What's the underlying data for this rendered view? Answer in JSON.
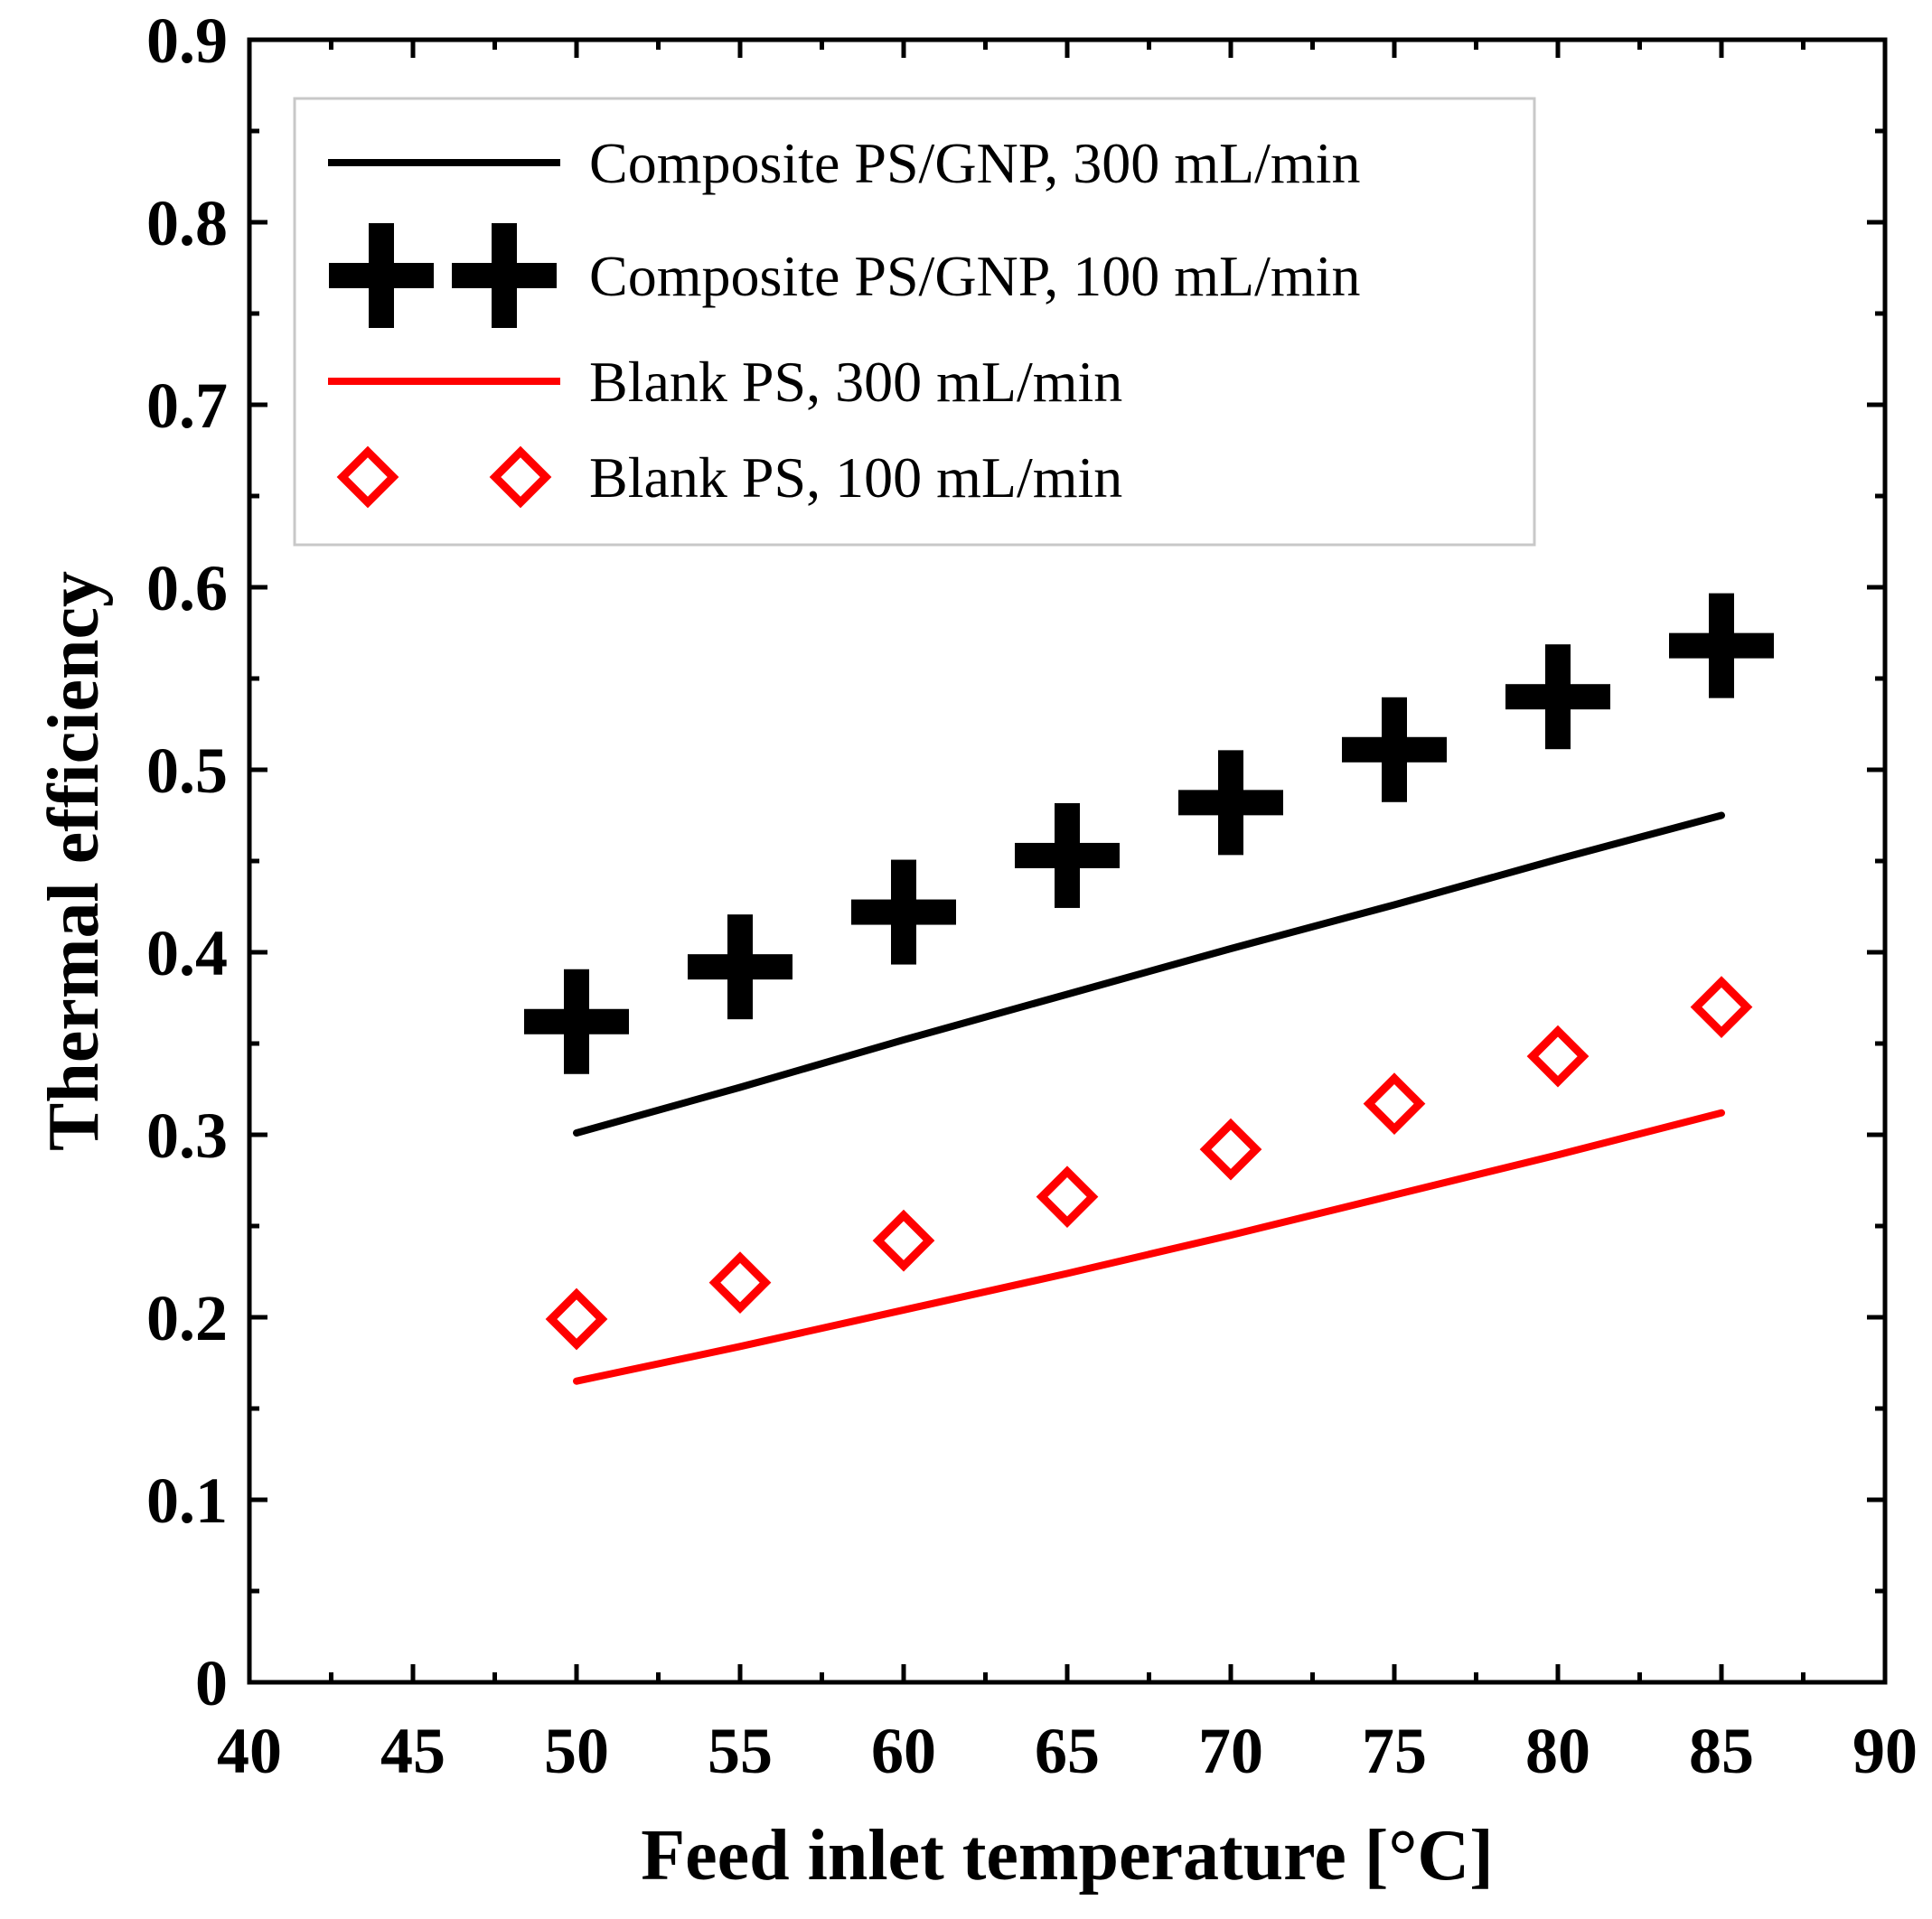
{
  "chart_data": {
    "type": "line",
    "title": "",
    "xlabel": "Feed inlet temperature [°C]",
    "ylabel": "Thermal efficiency",
    "xlim": [
      40,
      90
    ],
    "ylim": [
      0,
      0.9
    ],
    "x_ticks": [
      "40",
      "45",
      "50",
      "55",
      "60",
      "65",
      "70",
      "75",
      "80",
      "85",
      "90"
    ],
    "y_ticks": [
      "0",
      "0.1",
      "0.2",
      "0.3",
      "0.4",
      "0.5",
      "0.6",
      "0.7",
      "0.8",
      "0.9"
    ],
    "grid": false,
    "legend_position": "top-left",
    "series": [
      {
        "name": "Composite PS/GNP, 300 mL/min",
        "style": "line",
        "color": "#000000",
        "x": [
          50,
          55,
          60,
          65,
          70,
          75,
          80,
          85
        ],
        "y": [
          0.301,
          0.326,
          0.352,
          0.377,
          0.402,
          0.426,
          0.451,
          0.475
        ]
      },
      {
        "name": "Composite PS/GNP, 100 mL/min",
        "style": "marker",
        "marker": "plus",
        "color": "#000000",
        "x": [
          50,
          55,
          60,
          65,
          70,
          75,
          80,
          85
        ],
        "y": [
          0.362,
          0.392,
          0.422,
          0.453,
          0.482,
          0.511,
          0.54,
          0.568
        ]
      },
      {
        "name": "Blank PS, 300 mL/min",
        "style": "line",
        "color": "#ff0000",
        "x": [
          50,
          55,
          60,
          65,
          70,
          75,
          80,
          85
        ],
        "y": [
          0.165,
          0.184,
          0.204,
          0.224,
          0.245,
          0.267,
          0.289,
          0.312
        ]
      },
      {
        "name": "Blank PS, 100 mL/min",
        "style": "marker",
        "marker": "diamond-open",
        "color": "#ff0000",
        "x": [
          50,
          55,
          60,
          65,
          70,
          75,
          80,
          85
        ],
        "y": [
          0.199,
          0.219,
          0.242,
          0.266,
          0.292,
          0.317,
          0.343,
          0.37
        ]
      }
    ]
  }
}
